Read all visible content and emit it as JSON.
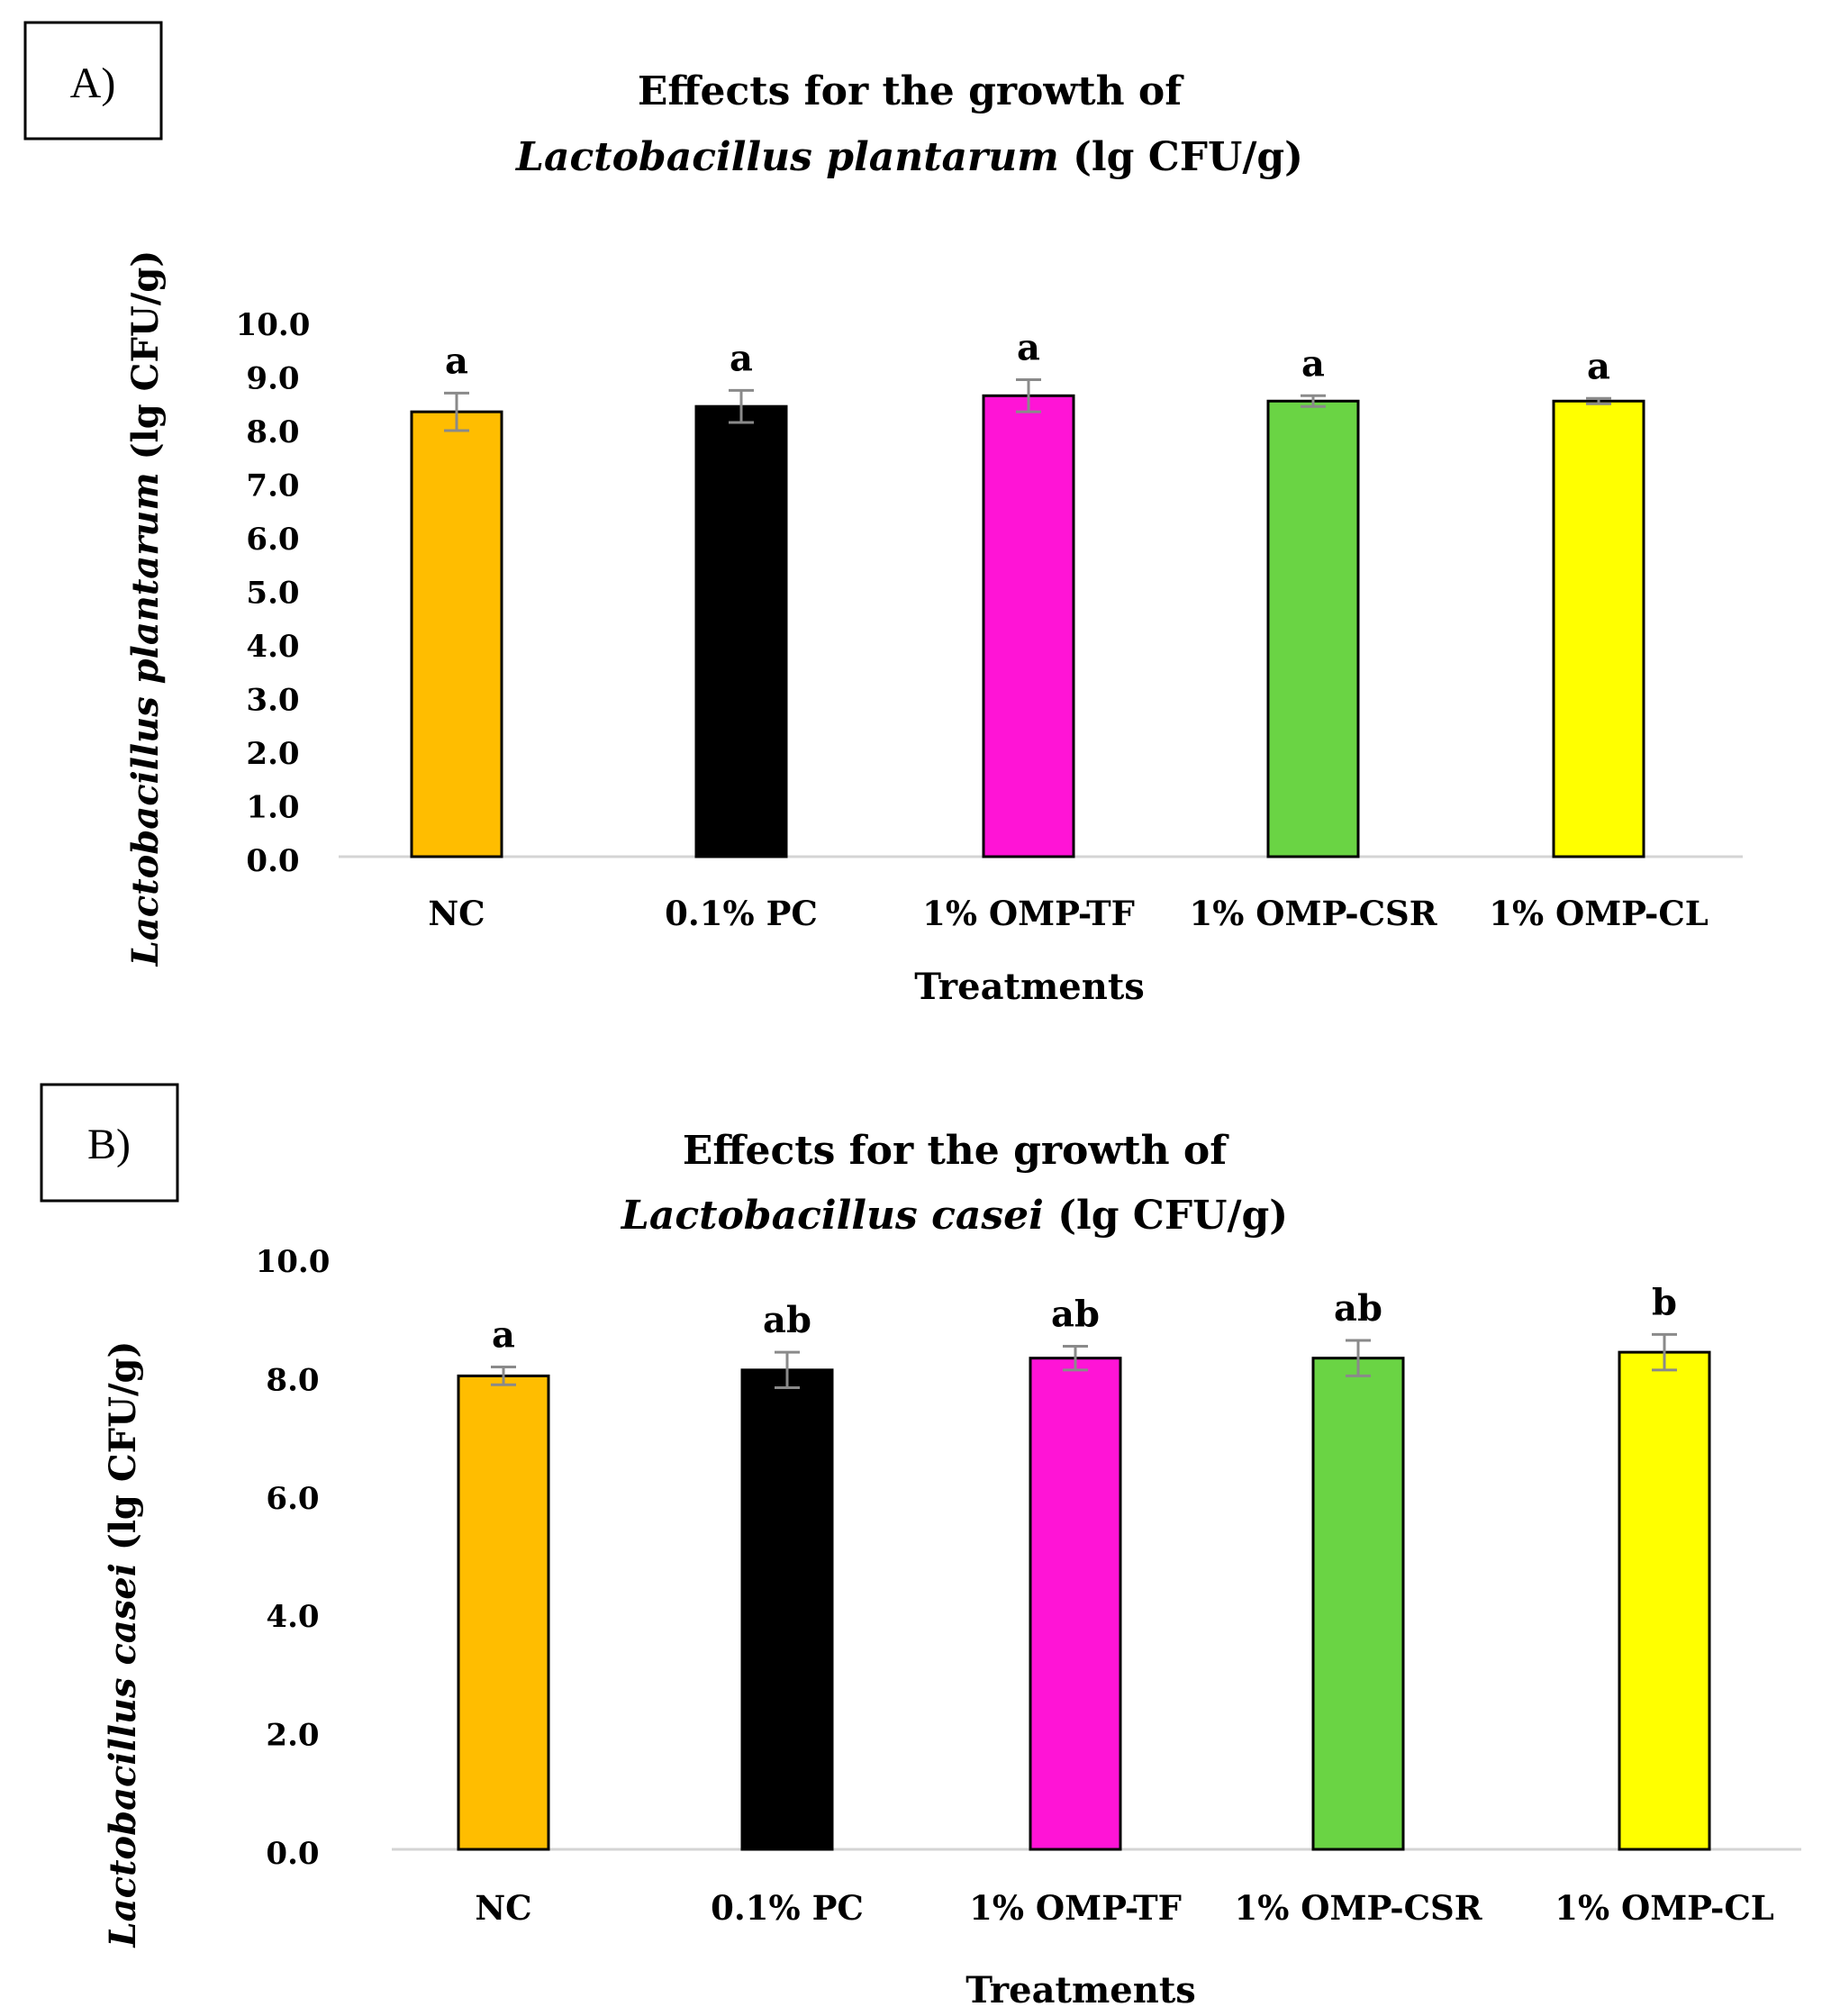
{
  "chart_data": [
    {
      "type": "bar",
      "panel_label": "A)",
      "title_line1": "Effects for the growth of",
      "title_species": "Lactobacillus plantarum",
      "title_unit": " (lg CFU/g)",
      "ylabel_species": "Lactobacillus plantarum",
      "ylabel_unit": " (lg CFU/g)",
      "xlabel": "Treatments",
      "ylim": [
        0,
        10
      ],
      "yticks": [
        "0.0",
        "1.0",
        "2.0",
        "3.0",
        "4.0",
        "5.0",
        "6.0",
        "7.0",
        "8.0",
        "9.0",
        "10.0"
      ],
      "categories": [
        "NC",
        "0.1% PC",
        "1% OMP-TF",
        "1% OMP-CSR",
        "1% OMP-CL"
      ],
      "values": [
        8.3,
        8.4,
        8.6,
        8.5,
        8.5
      ],
      "errors": [
        0.35,
        0.3,
        0.3,
        0.1,
        0.05
      ],
      "significance": [
        "a",
        "a",
        "a",
        "a",
        "a"
      ],
      "colors": [
        "#ffbd00",
        "#000000",
        "#ff14d6",
        "#6ad444",
        "#ffff00"
      ]
    },
    {
      "type": "bar",
      "panel_label": "B)",
      "title_line1": "Effects for the growth of",
      "title_species": "Lactobacillus casei",
      "title_unit": " (lg CFU/g)",
      "ylabel_species": "Lactobacillus casei",
      "ylabel_unit": " (lg CFU/g)",
      "xlabel": "Treatments",
      "ylim": [
        0,
        10
      ],
      "yticks": [
        "0.0",
        "2.0",
        "4.0",
        "6.0",
        "8.0",
        "10.0"
      ],
      "categories": [
        "NC",
        "0.1% PC",
        "1% OMP-TF",
        "1% OMP-CSR",
        "1% OMP-CL"
      ],
      "values": [
        8.0,
        8.1,
        8.3,
        8.3,
        8.4
      ],
      "errors": [
        0.15,
        0.3,
        0.2,
        0.3,
        0.3
      ],
      "significance": [
        "a",
        "ab",
        "ab",
        "ab",
        "b"
      ],
      "colors": [
        "#ffbd00",
        "#000000",
        "#ff14d6",
        "#6ad444",
        "#ffff00"
      ]
    }
  ]
}
